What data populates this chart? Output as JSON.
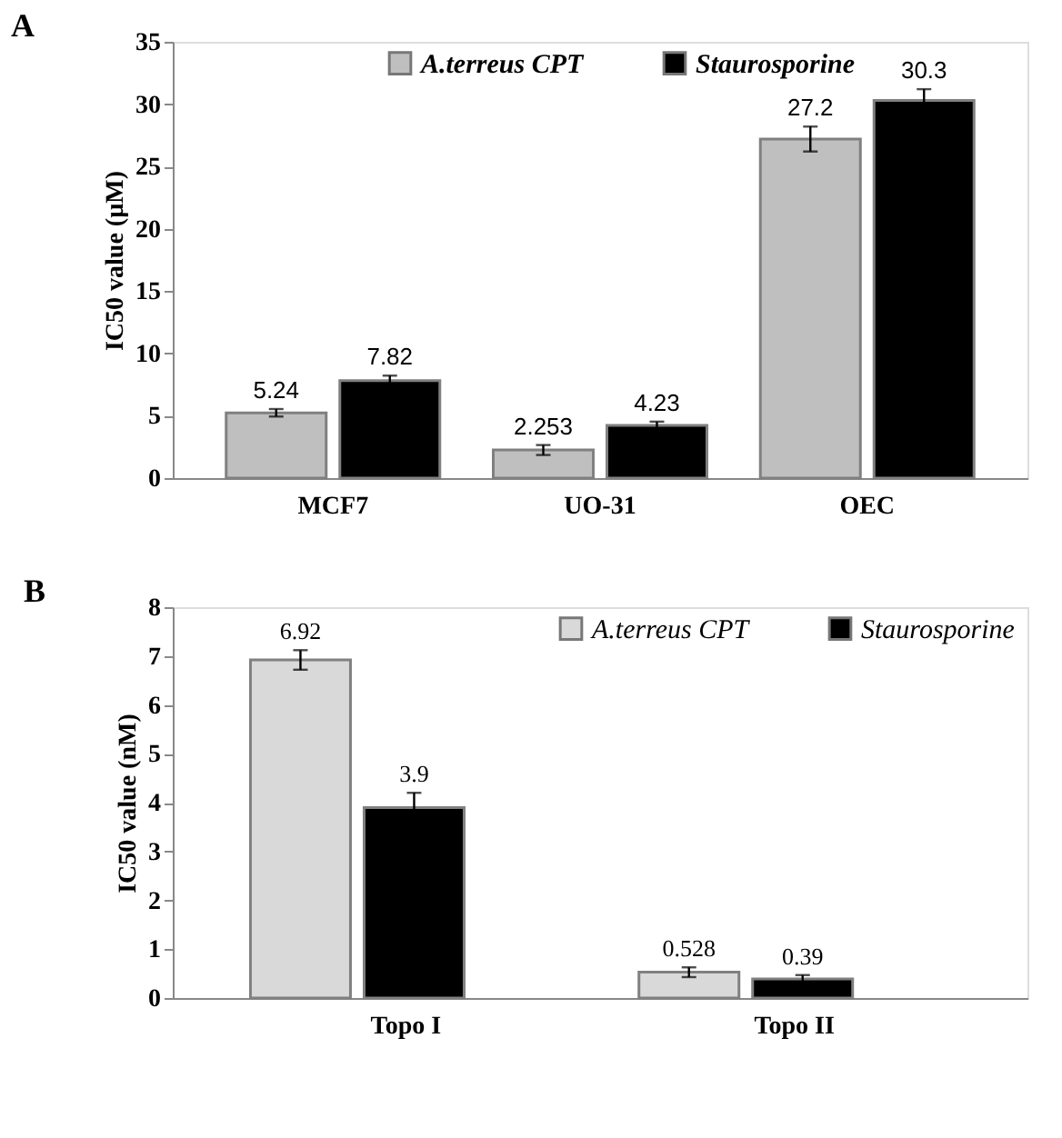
{
  "chart_data": [
    {
      "type": "bar",
      "title": "A",
      "ylabel": "IC50 value (µM)",
      "categories": [
        "MCF7",
        "UO-31",
        "OEC"
      ],
      "series": [
        {
          "name": "A.terreus CPT",
          "color": "#bfbfbf",
          "values": [
            5.24,
            2.253,
            27.2
          ],
          "errors": [
            0.3,
            0.4,
            1.0
          ]
        },
        {
          "name": "Staurosporine",
          "color": "#000000",
          "values": [
            7.82,
            4.23,
            30.3
          ],
          "errors": [
            0.4,
            0.3,
            0.9
          ]
        }
      ],
      "ylim": [
        0,
        35
      ],
      "yticks": [
        0,
        5,
        10,
        15,
        20,
        25,
        30,
        35
      ],
      "data_labels": true,
      "legend": "top",
      "grid": false
    },
    {
      "type": "bar",
      "title": "B",
      "ylabel": "IC50 value (nM)",
      "categories": [
        "Topo I",
        "Topo II"
      ],
      "series": [
        {
          "name": "A.terreus CPT",
          "color": "#d9d9d9",
          "values": [
            6.92,
            0.528
          ],
          "errors": [
            0.2,
            0.1
          ]
        },
        {
          "name": "Staurosporine",
          "color": "#000000",
          "values": [
            3.9,
            0.39
          ],
          "errors": [
            0.3,
            0.08
          ]
        }
      ],
      "ylim": [
        0,
        8
      ],
      "yticks": [
        0,
        1,
        2,
        3,
        4,
        5,
        6,
        7,
        8
      ],
      "data_labels": true,
      "legend": "top right",
      "grid": false
    }
  ]
}
